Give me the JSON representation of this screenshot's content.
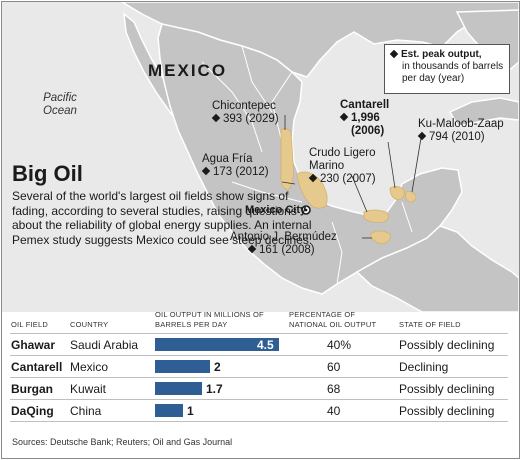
{
  "map": {
    "ocean_label": "Pacific Ocean",
    "country_label": "MEXICO",
    "capital_label": "Mexico City",
    "legend": {
      "title": "Est. peak output,",
      "subtitle": "in thousands of barrels per day (year)"
    },
    "fields": [
      {
        "name": "Chicontepec",
        "value": "393 (2029)"
      },
      {
        "name": "Agua Fría",
        "value": "173 (2012)"
      },
      {
        "name": "Crudo Ligero Marino",
        "value": "230 (2007)"
      },
      {
        "name": "Cantarell",
        "value": "1,996 (2006)"
      },
      {
        "name": "Ku-Maloob-Zaap",
        "value": "794 (2010)"
      },
      {
        "name": "Antonio J. Bermúdez",
        "value": "161 (2008)"
      }
    ],
    "colors": {
      "land": "#c4c4c4",
      "water": "#e9e9e9",
      "border": "#ffffff",
      "oil_field": "#e6c98c"
    }
  },
  "title": "Big Oil",
  "intro": "Several of the world's largest oil fields show signs of fading, according to several studies, raising questions about the reliability of global energy supplies. An internal Pemex study suggests Mexico could see steep declines.",
  "table": {
    "headers": {
      "field": "OIL FIELD",
      "country": "COUNTRY",
      "output": "OIL OUTPUT IN MILLIONS OF BARRELS PER DAY",
      "percent": "PERCENTAGE OF NATIONAL OIL OUTPUT",
      "state": "STATE OF FIELD"
    },
    "bar_color": "#2f5e95",
    "rows": [
      {
        "field": "Ghawar",
        "country": "Saudi Arabia",
        "output": 4.5,
        "output_label": "4.5",
        "percent": "40%",
        "state": "Possibly declining"
      },
      {
        "field": "Cantarell",
        "country": "Mexico",
        "output": 2,
        "output_label": "2",
        "percent": "60",
        "state": "Declining"
      },
      {
        "field": "Burgan",
        "country": "Kuwait",
        "output": 1.7,
        "output_label": "1.7",
        "percent": "68",
        "state": "Possibly declining"
      },
      {
        "field": "DaQing",
        "country": "China",
        "output": 1,
        "output_label": "1",
        "percent": "40",
        "state": "Possibly declining"
      }
    ]
  },
  "source": "Sources: Deutsche Bank; Reuters; Oil and Gas Journal"
}
